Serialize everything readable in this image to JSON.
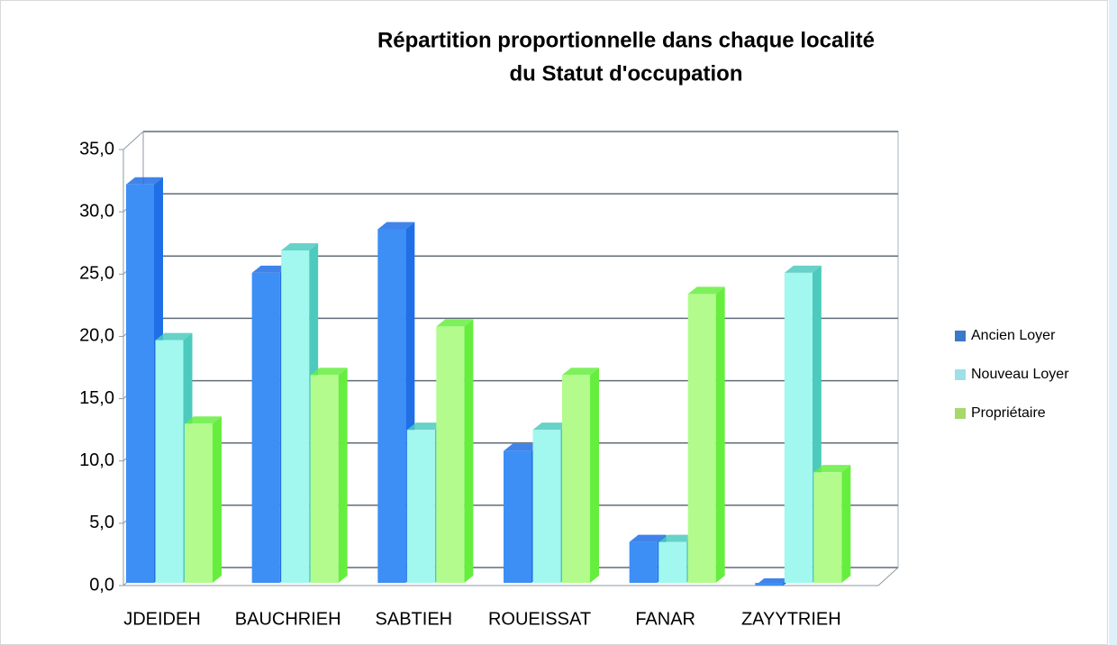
{
  "chart_data": {
    "type": "bar3d",
    "title": [
      "Répartition proportionnelle dans chaque localité",
      "du Statut d'occupation"
    ],
    "categories": [
      "JDEIDEH",
      "BAUCHRIEH",
      "SABTIEH",
      "ROUEISSAT",
      "FANAR",
      "ZAYYTRIEH"
    ],
    "series": [
      {
        "name": "Ancien Loyer",
        "color": "#3d8ff5",
        "side": "#1f6fe6",
        "legend_color": "#3a78c8",
        "values": [
          32.2,
          25.1,
          28.6,
          10.8,
          3.5,
          0.0
        ]
      },
      {
        "name": "Nouveau Loyer",
        "color": "#a2f7ef",
        "side": "#4ccabd",
        "legend_color": "#9ee0e8",
        "values": [
          19.7,
          26.9,
          12.5,
          12.5,
          3.5,
          25.1
        ]
      },
      {
        "name": "Propriétaire",
        "color": "#b2fb8c",
        "side": "#66ee3e",
        "legend_color": "#a6d86e",
        "values": [
          13.0,
          16.9,
          20.8,
          16.9,
          23.4,
          9.1
        ]
      }
    ],
    "ylim": [
      0,
      35
    ],
    "yticks": [
      {
        "value": 0,
        "label": "0,0"
      },
      {
        "value": 5,
        "label": "5,0"
      },
      {
        "value": 10,
        "label": "10,0"
      },
      {
        "value": 15,
        "label": "15,0"
      },
      {
        "value": 20,
        "label": "20,0"
      },
      {
        "value": 25,
        "label": "25,0"
      },
      {
        "value": 30,
        "label": "30,0"
      },
      {
        "value": 35,
        "label": "35,0"
      }
    ],
    "grid": true,
    "legend": "right"
  }
}
